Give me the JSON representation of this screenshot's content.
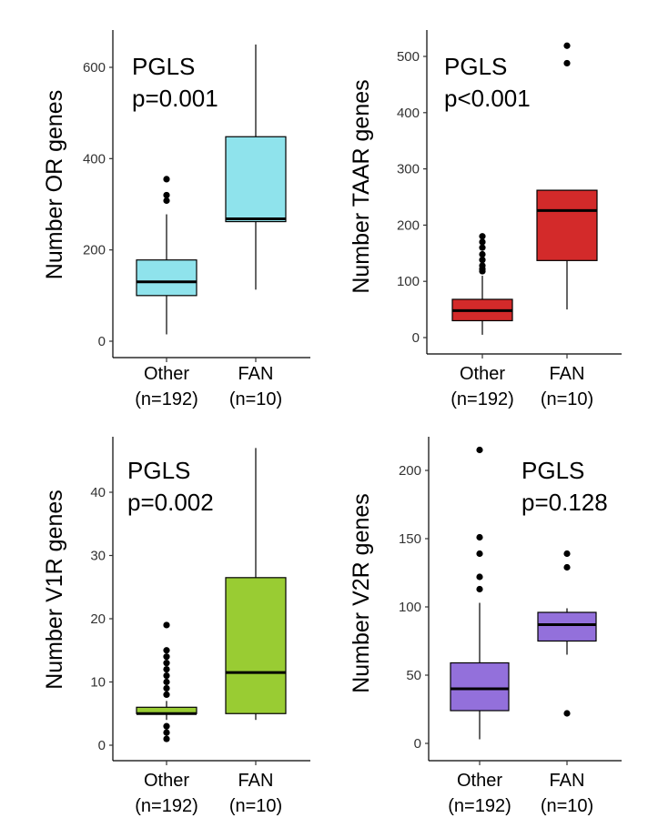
{
  "chart_data": [
    {
      "type": "boxplot",
      "ylabel": "Number OR genes",
      "ylim": [
        0,
        680
      ],
      "yticks": [
        0,
        200,
        400,
        600
      ],
      "annotation": [
        "PGLS",
        "p=0.001"
      ],
      "categories": [
        {
          "label": "Other",
          "n_label": "(n=192)",
          "color": "#8fe3ec",
          "whisker_low": 15,
          "q1": 100,
          "median": 130,
          "q3": 178,
          "whisker_high": 278,
          "outliers": [
            355,
            320,
            308
          ]
        },
        {
          "label": "FAN",
          "n_label": "(n=10)",
          "color": "#8fe3ec",
          "whisker_low": 113,
          "q1": 262,
          "median": 268,
          "q3": 448,
          "whisker_high": 650,
          "outliers": []
        }
      ]
    },
    {
      "type": "boxplot",
      "ylabel": "Number TAAR genes",
      "ylim": [
        0,
        545
      ],
      "yticks": [
        0,
        100,
        200,
        300,
        400,
        500
      ],
      "annotation": [
        "PGLS",
        "p<0.001"
      ],
      "categories": [
        {
          "label": "Other",
          "n_label": "(n=192)",
          "color": "#d32a2a",
          "whisker_low": 5,
          "q1": 30,
          "median": 48,
          "q3": 68,
          "whisker_high": 110,
          "outliers": [
            180,
            170,
            160,
            148,
            138,
            128,
            122,
            118
          ]
        },
        {
          "label": "FAN",
          "n_label": "(n=10)",
          "color": "#d32a2a",
          "whisker_low": 50,
          "q1": 137,
          "median": 226,
          "q3": 262,
          "whisker_high": 262,
          "outliers": [
            519,
            488
          ]
        }
      ]
    },
    {
      "type": "boxplot",
      "ylabel": "Number V1R genes",
      "ylim": [
        0,
        48
      ],
      "yticks": [
        0,
        10,
        20,
        30,
        40
      ],
      "annotation": [
        "PGLS",
        "p=0.002"
      ],
      "categories": [
        {
          "label": "Other",
          "n_label": "(n=192)",
          "color": "#99cc33",
          "whisker_low": 4,
          "q1": 5,
          "median": 5,
          "q3": 6,
          "whisker_high": 7,
          "outliers": [
            19,
            15,
            14,
            13,
            12,
            11,
            10,
            9,
            8,
            3,
            2,
            1
          ]
        },
        {
          "label": "FAN",
          "n_label": "(n=10)",
          "color": "#99cc33",
          "whisker_low": 4,
          "q1": 5,
          "median": 11.5,
          "q3": 26.5,
          "whisker_high": 47,
          "outliers": []
        }
      ]
    },
    {
      "type": "boxplot",
      "ylabel": "Number V2R genes",
      "ylim": [
        0,
        225
      ],
      "yticks": [
        0,
        50,
        100,
        150,
        200
      ],
      "annotation": [
        "PGLS",
        "p=0.128"
      ],
      "categories": [
        {
          "label": "Other",
          "n_label": "(n=192)",
          "color": "#9370db",
          "whisker_low": 3,
          "q1": 24,
          "median": 40,
          "q3": 59,
          "whisker_high": 103,
          "outliers": [
            215,
            151,
            139,
            122,
            113
          ]
        },
        {
          "label": "FAN",
          "n_label": "(n=10)",
          "color": "#9370db",
          "whisker_low": 65,
          "q1": 75,
          "median": 87,
          "q3": 96,
          "whisker_high": 99,
          "outliers": [
            139,
            129,
            22
          ]
        }
      ]
    }
  ]
}
